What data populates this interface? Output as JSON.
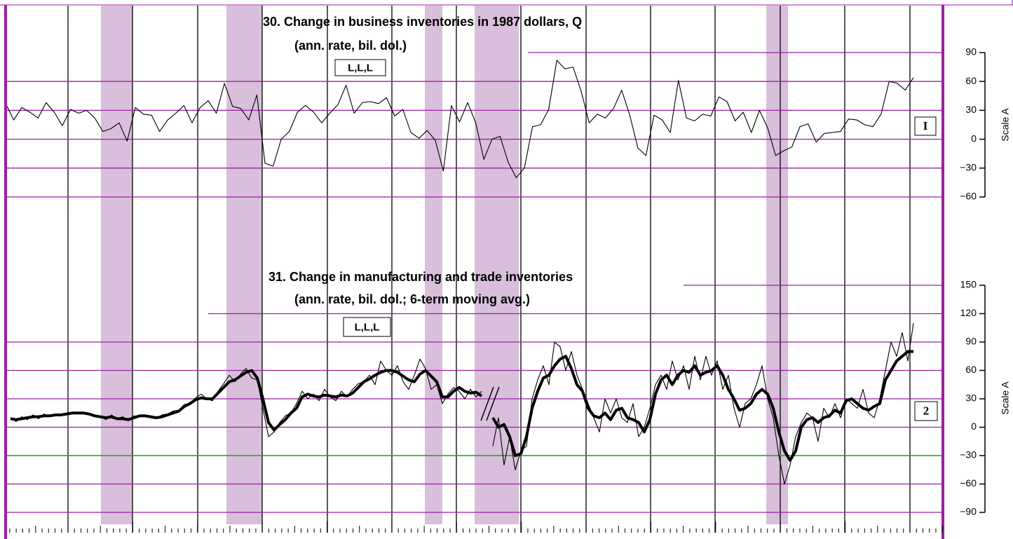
{
  "chart_data": [
    {
      "type": "line",
      "title": "30. Change in business inventories in 1987 dollars, Q",
      "subtitle": "(ann. rate, bil. dol.)",
      "badge": "L,L,L",
      "panel_label": "I",
      "y_axis_label": "Scale A",
      "ylim": [
        -60,
        90
      ],
      "yticks": [
        90,
        60,
        30,
        0,
        {
          "value": -30,
          "label": "−30"
        },
        {
          "value": -60,
          "label": "−60"
        }
      ],
      "grid": true,
      "grid_color": "#9b1fa3",
      "series": [
        {
          "color": "#000000",
          "values": [
            37,
            20,
            33,
            28,
            22,
            38,
            28,
            14,
            31,
            27,
            30,
            22,
            8,
            11,
            17,
            -2,
            33,
            26,
            25,
            8,
            20,
            27,
            35,
            17,
            33,
            40,
            27,
            58,
            34,
            32,
            20,
            46,
            -25,
            -28,
            0,
            8,
            28,
            35,
            28,
            17,
            27,
            36,
            56,
            27,
            38,
            39,
            37,
            43,
            24,
            31,
            7,
            1,
            9,
            -1,
            -33,
            35,
            18,
            38,
            17,
            -21,
            0,
            3,
            -24,
            -40,
            -30,
            13,
            15,
            31,
            82,
            73,
            75,
            50,
            17,
            26,
            22,
            32,
            51,
            25,
            -9,
            -17,
            25,
            20,
            7,
            61,
            22,
            19,
            26,
            24,
            44,
            39,
            19,
            28,
            7,
            30,
            12,
            -17,
            -12,
            -8,
            13,
            16,
            -3,
            6,
            7,
            8,
            21,
            20,
            15,
            13,
            26,
            60,
            58,
            51,
            64
          ]
        }
      ]
    },
    {
      "type": "line",
      "title": "31. Change in manufacturing and trade inventories",
      "subtitle": "(ann. rate, bil. dol.; 6-term moving avg.)",
      "badge": "L,L,L",
      "panel_label": "2",
      "y_axis_label": "Scale A",
      "ylim": [
        -90,
        150
      ],
      "yticks": [
        150,
        120,
        90,
        60,
        30,
        0,
        {
          "value": -30,
          "label": "−30"
        },
        {
          "value": -60,
          "label": "−60"
        },
        {
          "value": -90,
          "label": "−90"
        }
      ],
      "grid": true,
      "grid_color": "#9b1fa3",
      "reference_line": {
        "value": -30,
        "color": "#1fb31f"
      },
      "series": [
        {
          "color": "#000000",
          "values": [
            10,
            6,
            11,
            8,
            13,
            9,
            14,
            11,
            14,
            12,
            15,
            16,
            15,
            14,
            13,
            11,
            12,
            8,
            13,
            9,
            11,
            7,
            12,
            11,
            12,
            10,
            9,
            13,
            14,
            17,
            18,
            24,
            25,
            31,
            35,
            30,
            28,
            38,
            46,
            55,
            48,
            56,
            62,
            52,
            50,
            20,
            -10,
            -5,
            5,
            12,
            15,
            25,
            38,
            30,
            35,
            28,
            40,
            32,
            28,
            38,
            32,
            40,
            46,
            48,
            55,
            45,
            70,
            60,
            55,
            65,
            48,
            40,
            55,
            72,
            62,
            40,
            45,
            25,
            35,
            42,
            38,
            30,
            40,
            32,
            38,
            null,
            -20,
            10,
            -40,
            -10,
            -45,
            -25,
            -20,
            30,
            50,
            65,
            45,
            90,
            85,
            60,
            80,
            55,
            40,
            25,
            10,
            -5,
            30,
            15,
            30,
            10,
            5,
            25,
            -10,
            0,
            20,
            45,
            55,
            40,
            70,
            50,
            65,
            40,
            75,
            50,
            75,
            55,
            70,
            40,
            55,
            20,
            0,
            25,
            30,
            45,
            65,
            30,
            10,
            -30,
            -60,
            -40,
            -10,
            5,
            15,
            10,
            -15,
            20,
            10,
            25,
            10,
            30,
            25,
            20,
            40,
            15,
            10,
            30,
            60,
            90,
            75,
            100,
            70,
            110
          ]
        },
        {
          "color": "#000000",
          "values": [
            9,
            8,
            9,
            10,
            11,
            11,
            12,
            12,
            13,
            13,
            14,
            15,
            15,
            15,
            14,
            12,
            11,
            10,
            11,
            9,
            9,
            8,
            10,
            12,
            12,
            11,
            10,
            11,
            13,
            15,
            17,
            22,
            25,
            29,
            31,
            30,
            30,
            36,
            42,
            48,
            50,
            54,
            58,
            60,
            52,
            30,
            5,
            -3,
            3,
            8,
            15,
            20,
            32,
            35,
            33,
            32,
            34,
            33,
            32,
            34,
            33,
            36,
            42,
            48,
            51,
            55,
            58,
            60,
            60,
            58,
            54,
            50,
            48,
            56,
            60,
            54,
            48,
            32,
            32,
            38,
            42,
            38,
            36,
            37,
            33,
            null,
            10,
            0,
            3,
            -10,
            -30,
            -28,
            -10,
            20,
            38,
            52,
            55,
            65,
            72,
            75,
            62,
            45,
            38,
            20,
            12,
            10,
            15,
            8,
            18,
            20,
            10,
            8,
            5,
            -5,
            8,
            35,
            50,
            55,
            45,
            55,
            60,
            58,
            65,
            55,
            58,
            60,
            65,
            55,
            40,
            30,
            18,
            20,
            25,
            35,
            40,
            35,
            20,
            -5,
            -25,
            -35,
            -25,
            0,
            8,
            10,
            5,
            10,
            12,
            18,
            15,
            28,
            30,
            25,
            20,
            18,
            22,
            25,
            50,
            60,
            70,
            75,
            80,
            80
          ]
        }
      ]
    }
  ]
}
